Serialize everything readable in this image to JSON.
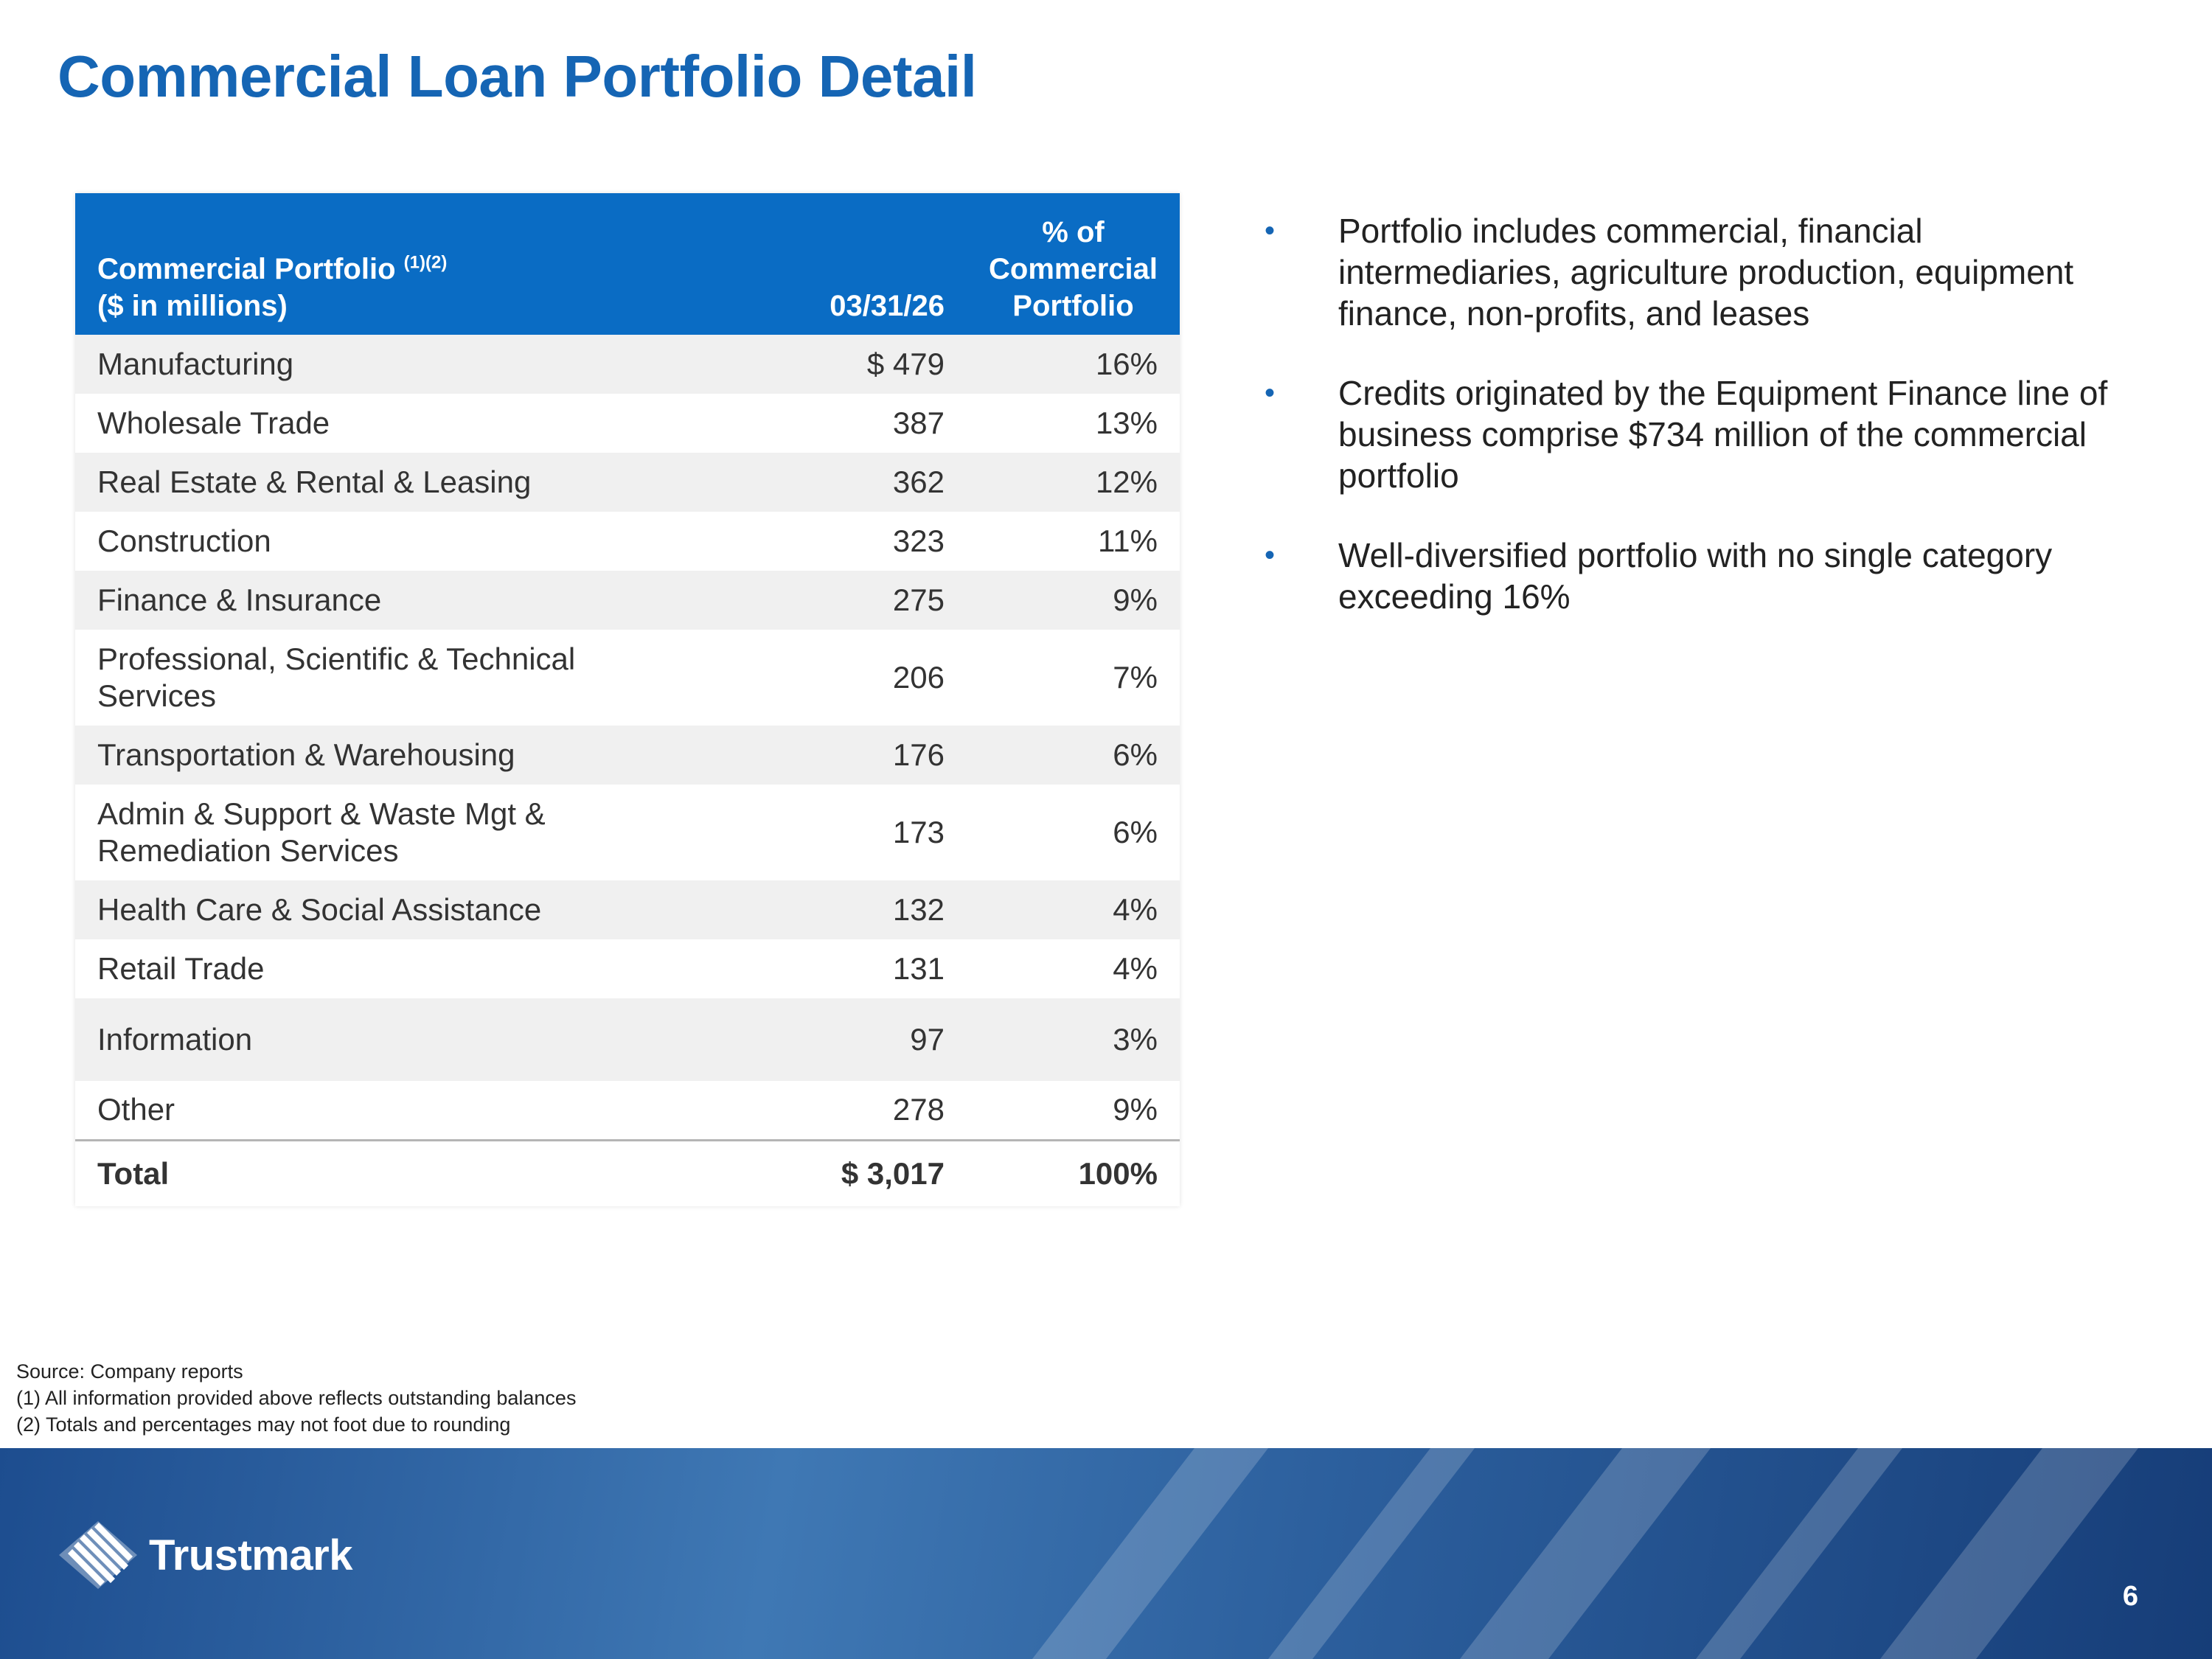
{
  "title": "Commercial Loan Portfolio Detail",
  "table": {
    "header": {
      "category_line1": "Commercial Portfolio",
      "category_sup": "(1)(2)",
      "category_line2": "($ in millions)",
      "date": "03/31/26",
      "pct_line1": "% of",
      "pct_line2": "Commercial",
      "pct_line3": "Portfolio"
    },
    "rows": [
      {
        "category": "Manufacturing",
        "value": "$ 479",
        "pct": "16%"
      },
      {
        "category": "Wholesale Trade",
        "value": "387",
        "pct": "13%"
      },
      {
        "category": "Real Estate & Rental & Leasing",
        "value": "362",
        "pct": "12%"
      },
      {
        "category": "Construction",
        "value": "323",
        "pct": "11%"
      },
      {
        "category": "Finance & Insurance",
        "value": "275",
        "pct": "9%"
      },
      {
        "category_line1": "Professional, Scientific & Technical",
        "category_line2": "Services",
        "value": "206",
        "pct": "7%"
      },
      {
        "category": "Transportation & Warehousing",
        "value": "176",
        "pct": "6%"
      },
      {
        "category_line1": "Admin & Support & Waste Mgt &",
        "category_line2": "Remediation Services",
        "value": "173",
        "pct": "6%"
      },
      {
        "category": "Health Care & Social Assistance",
        "value": "132",
        "pct": "4%"
      },
      {
        "category": "Retail Trade",
        "value": "131",
        "pct": "4%"
      },
      {
        "category": "Information",
        "value": "97",
        "pct": "3%"
      },
      {
        "category": "Other",
        "value": "278",
        "pct": "9%"
      }
    ],
    "total": {
      "label": "Total",
      "value": "$ 3,017",
      "pct": "100%"
    }
  },
  "bullets": [
    "Portfolio includes commercial, financial intermediaries, agriculture production, equipment finance, non-profits, and leases",
    "Credits originated by the Equipment Finance line of business comprise $734 million of the commercial portfolio",
    "Well-diversified portfolio with no single category exceeding 16%"
  ],
  "bullet_marker": "•",
  "notes": [
    "Source: Company reports",
    "(1) All information provided above reflects outstanding balances",
    "(2) Totals and percentages may not foot due to rounding"
  ],
  "footer": {
    "logo_text": "Trustmark",
    "logo_icon": "trustmark-logo-icon",
    "page_number": "6"
  },
  "colors": {
    "title": "#1565b4",
    "header_bg": "#0a6cc4",
    "row_shade": "#f0f0f0",
    "footer_dark": "#163d78",
    "footer_light": "#3f78b4"
  }
}
